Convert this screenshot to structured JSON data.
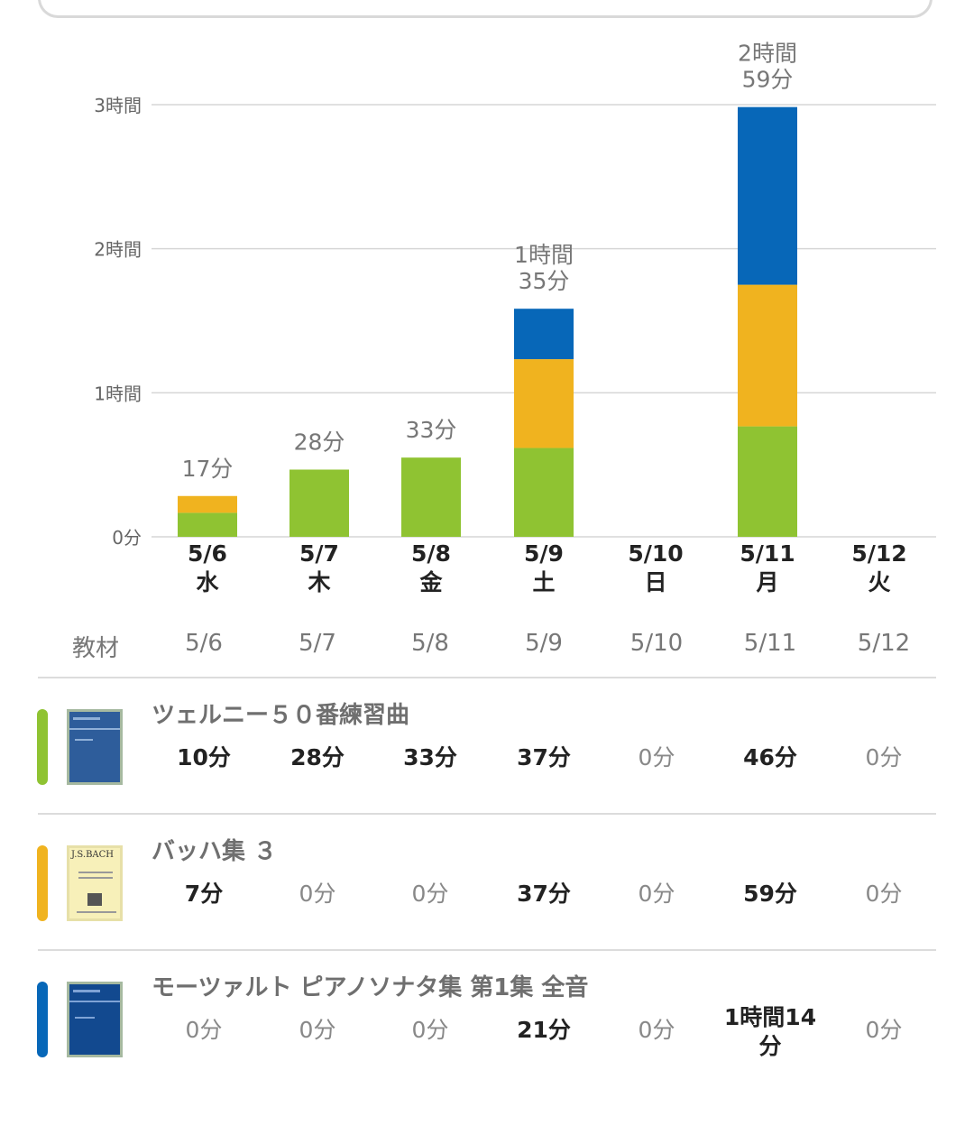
{
  "colors": {
    "green": "#8fc332",
    "orange": "#f0b31f",
    "blue": "#0767b8",
    "grid": "#d6d6d6"
  },
  "chart_data": {
    "type": "bar",
    "stacked": true,
    "categories": [
      "5/6",
      "5/7",
      "5/8",
      "5/9",
      "5/10",
      "5/11",
      "5/12"
    ],
    "weekdays": [
      "水",
      "木",
      "金",
      "土",
      "日",
      "月",
      "火"
    ],
    "series": [
      {
        "name": "ツェルニー５０番練習曲",
        "values": [
          10,
          28,
          33,
          37,
          0,
          46,
          0
        ]
      },
      {
        "name": "バッハ集 ３",
        "values": [
          7,
          0,
          0,
          37,
          0,
          59,
          0
        ]
      },
      {
        "name": "モーツァルト ピアノソナタ集 第1集 全音",
        "values": [
          0,
          0,
          0,
          21,
          0,
          74,
          0
        ]
      }
    ],
    "totals_labels": [
      "17分",
      "28分",
      "33分",
      "1時間\n35分",
      "",
      "2時間\n59分",
      ""
    ],
    "y_ticks": [
      0,
      60,
      120,
      180
    ],
    "y_tick_labels": [
      "0分",
      "1時間",
      "2時間",
      "3時間"
    ],
    "ylim": [
      0,
      180
    ],
    "grid": true
  },
  "table": {
    "header_label": "教材",
    "dates": [
      "5/6",
      "5/7",
      "5/8",
      "5/9",
      "5/10",
      "5/11",
      "5/12"
    ],
    "rows": [
      {
        "title": "ツェルニー５０番練習曲",
        "cover": "czerny-cover",
        "values": [
          "10分",
          "28分",
          "33分",
          "37分",
          "0分",
          "46分",
          "0分"
        ]
      },
      {
        "title": "バッハ集 ３",
        "cover": "bach-cover",
        "values": [
          "7分",
          "0分",
          "0分",
          "37分",
          "0分",
          "59分",
          "0分"
        ]
      },
      {
        "title": "モーツァルト ピアノソナタ集 第1集 全音",
        "cover": "mozart-cover",
        "values": [
          "0分",
          "0分",
          "0分",
          "21分",
          "0分",
          "1時間14\n分",
          "0分"
        ]
      }
    ]
  },
  "covers": {
    "bach_text": "J.S.BACH"
  }
}
